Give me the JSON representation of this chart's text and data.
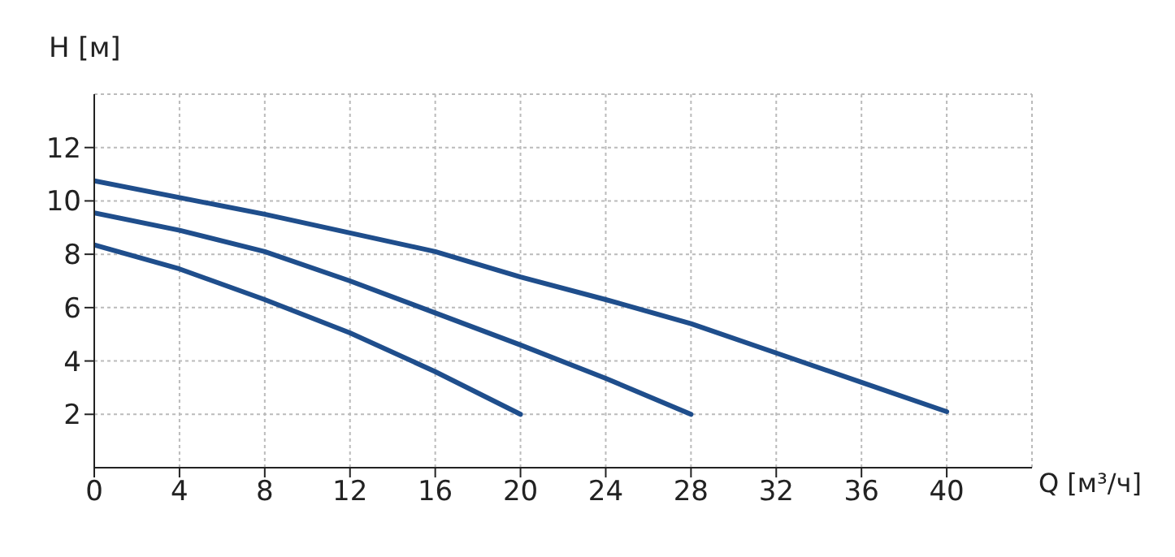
{
  "chart_data": {
    "type": "line",
    "xlabel": "Q [м³/ч]",
    "ylabel": "H [м]",
    "xlim": [
      0,
      44
    ],
    "ylim": [
      0,
      14
    ],
    "xticks": [
      0,
      4,
      8,
      12,
      16,
      20,
      24,
      28,
      32,
      36,
      40
    ],
    "yticks": [
      2,
      4,
      6,
      8,
      10,
      12
    ],
    "grid": true,
    "line_style": "solid",
    "series": [
      {
        "color": "#1f4e8c",
        "x": [
          0,
          8,
          16,
          20,
          24,
          28,
          32,
          36,
          40
        ],
        "values": [
          10.75,
          9.5,
          8.1,
          7.15,
          6.3,
          5.4,
          4.3,
          3.2,
          2.1
        ]
      },
      {
        "color": "#1f4e8c",
        "x": [
          0,
          4,
          8,
          12,
          16,
          20,
          24,
          28
        ],
        "values": [
          9.55,
          8.9,
          8.1,
          7.0,
          5.8,
          4.6,
          3.35,
          2.0
        ]
      },
      {
        "color": "#1f4e8c",
        "x": [
          0,
          4,
          8,
          12,
          16,
          20
        ],
        "values": [
          8.35,
          7.45,
          6.3,
          5.05,
          3.6,
          2.0
        ]
      }
    ]
  }
}
